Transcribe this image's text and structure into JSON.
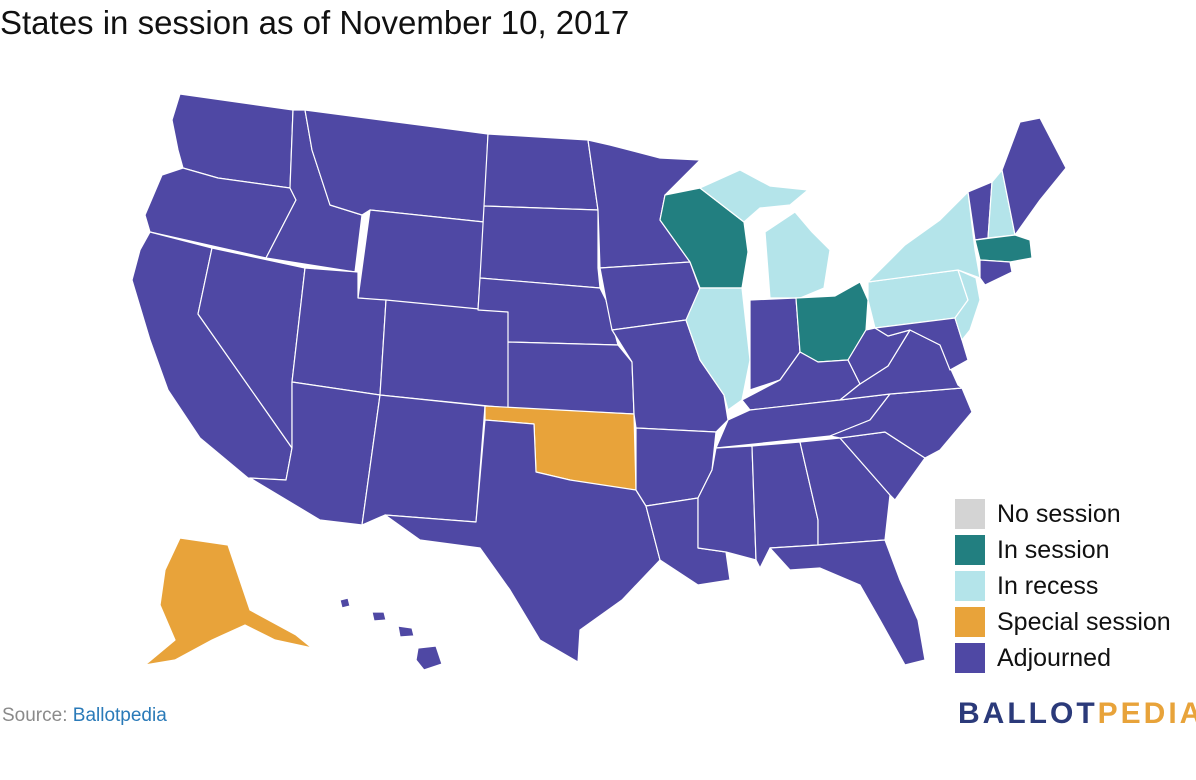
{
  "title": "States in session as of November 10, 2017",
  "colors": {
    "no_session": "#d4d4d4",
    "in_session": "#227f80",
    "in_recess": "#b4e4ea",
    "special_session": "#e8a33a",
    "adjourned": "#4f48a4",
    "border": "#ffffff"
  },
  "legend": [
    {
      "label": "No session",
      "status": "no_session"
    },
    {
      "label": "In session",
      "status": "in_session"
    },
    {
      "label": "In recess",
      "status": "in_recess"
    },
    {
      "label": "Special session",
      "status": "special_session"
    },
    {
      "label": "Adjourned",
      "status": "adjourned"
    }
  ],
  "states": [
    {
      "state": "Wisconsin",
      "status": "in_session"
    },
    {
      "state": "Ohio",
      "status": "in_session"
    },
    {
      "state": "Massachusetts",
      "status": "in_session"
    },
    {
      "state": "Michigan",
      "status": "in_recess"
    },
    {
      "state": "Illinois",
      "status": "in_recess"
    },
    {
      "state": "Pennsylvania",
      "status": "in_recess"
    },
    {
      "state": "New York",
      "status": "in_recess"
    },
    {
      "state": "New Hampshire",
      "status": "in_recess"
    },
    {
      "state": "New Jersey",
      "status": "in_recess"
    },
    {
      "state": "Oklahoma",
      "status": "special_session"
    },
    {
      "state": "Alaska",
      "status": "special_session"
    }
  ],
  "default_status": "adjourned",
  "source": {
    "prefix": "Source: ",
    "link_text": "Ballotpedia"
  },
  "logo": {
    "part1": "BALLOT",
    "part2": "PEDIA"
  }
}
